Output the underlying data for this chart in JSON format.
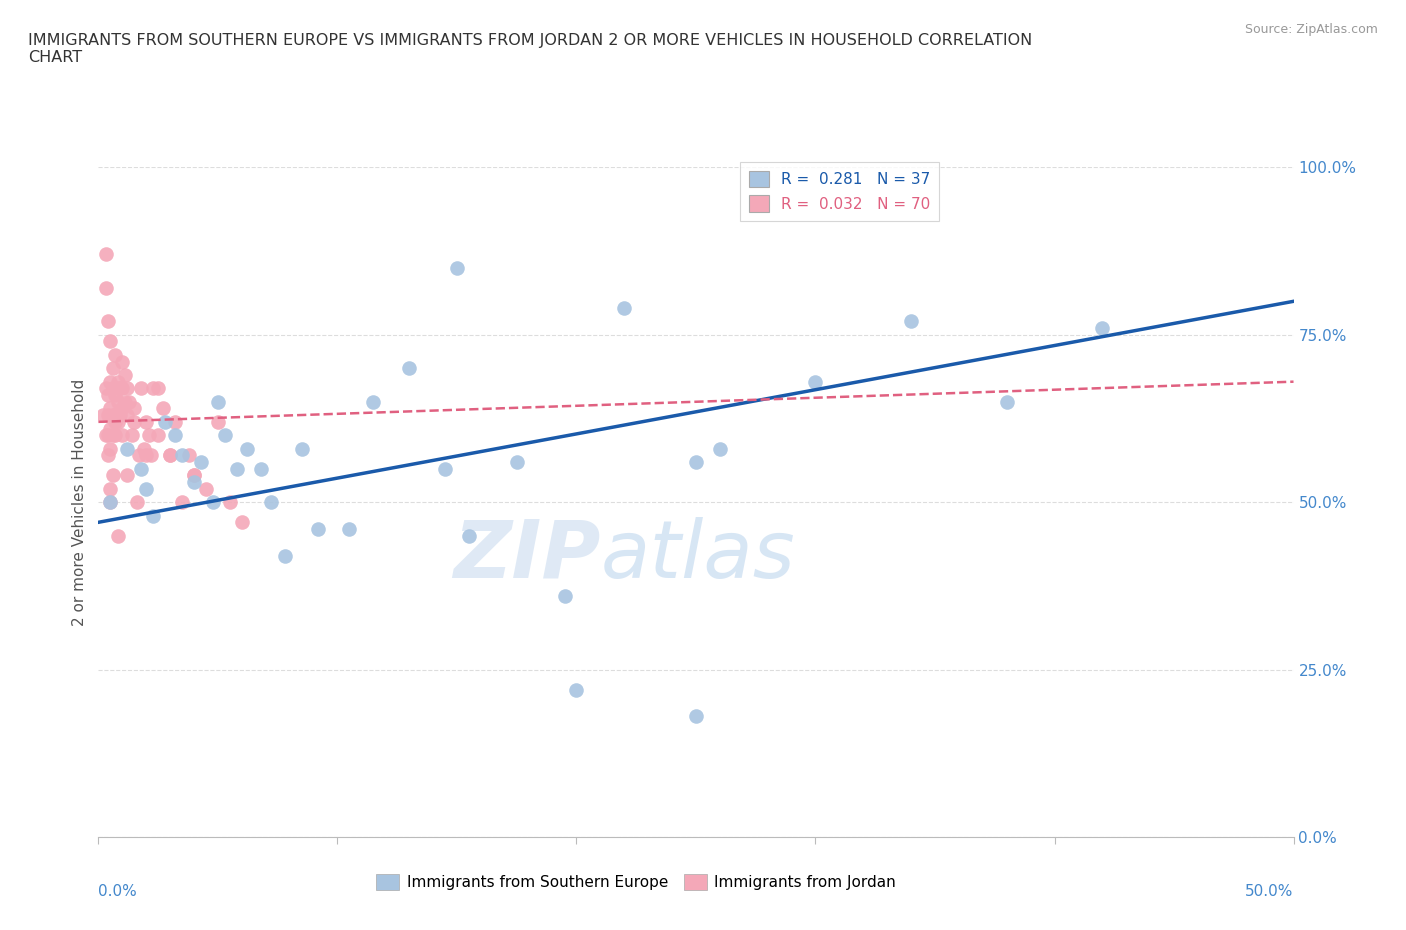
{
  "title": "IMMIGRANTS FROM SOUTHERN EUROPE VS IMMIGRANTS FROM JORDAN 2 OR MORE VEHICLES IN HOUSEHOLD CORRELATION\nCHART",
  "source": "Source: ZipAtlas.com",
  "ylabel": "2 or more Vehicles in Household",
  "yticks": [
    "0.0%",
    "25.0%",
    "50.0%",
    "75.0%",
    "100.0%"
  ],
  "ytick_vals": [
    0,
    25,
    50,
    75,
    100
  ],
  "blue_R": 0.281,
  "blue_N": 37,
  "pink_R": 0.032,
  "pink_N": 70,
  "blue_color": "#a8c4e0",
  "pink_color": "#f4a8b8",
  "blue_line_color": "#1a5aaa",
  "pink_line_color": "#e06080",
  "watermark_zip": "ZIP",
  "watermark_atlas": "atlas",
  "blue_scatter_x": [
    0.5,
    1.2,
    1.8,
    2.0,
    2.3,
    2.8,
    3.2,
    3.5,
    4.0,
    4.3,
    4.8,
    5.0,
    5.3,
    5.8,
    6.2,
    6.8,
    7.2,
    7.8,
    8.5,
    9.2,
    10.5,
    11.5,
    13.0,
    14.5,
    15.5,
    17.5,
    19.5,
    22.0,
    15.0,
    20.0,
    25.0,
    26.0,
    30.0,
    34.0,
    38.0,
    42.0,
    25.0
  ],
  "blue_scatter_y": [
    50,
    58,
    55,
    52,
    48,
    62,
    60,
    57,
    53,
    56,
    50,
    65,
    60,
    55,
    58,
    55,
    50,
    42,
    58,
    46,
    46,
    65,
    70,
    55,
    45,
    56,
    36,
    79,
    85,
    22,
    56,
    58,
    68,
    77,
    65,
    76,
    18
  ],
  "pink_scatter_x": [
    0.2,
    0.3,
    0.3,
    0.4,
    0.4,
    0.4,
    0.5,
    0.5,
    0.5,
    0.5,
    0.6,
    0.6,
    0.6,
    0.7,
    0.7,
    0.7,
    0.8,
    0.8,
    0.8,
    0.9,
    0.9,
    1.0,
    1.0,
    1.0,
    1.1,
    1.1,
    1.2,
    1.2,
    1.3,
    1.4,
    1.5,
    1.6,
    1.7,
    1.8,
    1.9,
    2.0,
    2.1,
    2.2,
    2.3,
    2.5,
    2.7,
    3.0,
    3.2,
    3.5,
    3.8,
    4.0,
    4.5,
    5.0,
    5.5,
    6.0,
    0.3,
    0.4,
    0.5,
    0.6,
    0.7,
    0.8,
    0.4,
    0.5,
    0.5,
    0.6,
    0.7,
    0.3,
    1.0,
    1.5,
    2.0,
    2.5,
    3.0,
    4.0,
    0.8,
    1.2
  ],
  "pink_scatter_y": [
    63,
    60,
    67,
    66,
    63,
    60,
    68,
    64,
    61,
    58,
    67,
    63,
    60,
    66,
    63,
    60,
    68,
    65,
    62,
    67,
    63,
    71,
    67,
    64,
    69,
    65,
    67,
    63,
    65,
    60,
    64,
    50,
    57,
    67,
    58,
    62,
    60,
    57,
    67,
    60,
    64,
    57,
    62,
    50,
    57,
    54,
    52,
    62,
    50,
    47,
    82,
    77,
    74,
    70,
    72,
    67,
    57,
    52,
    50,
    54,
    62,
    87,
    60,
    62,
    57,
    67,
    57,
    54,
    45,
    54
  ]
}
